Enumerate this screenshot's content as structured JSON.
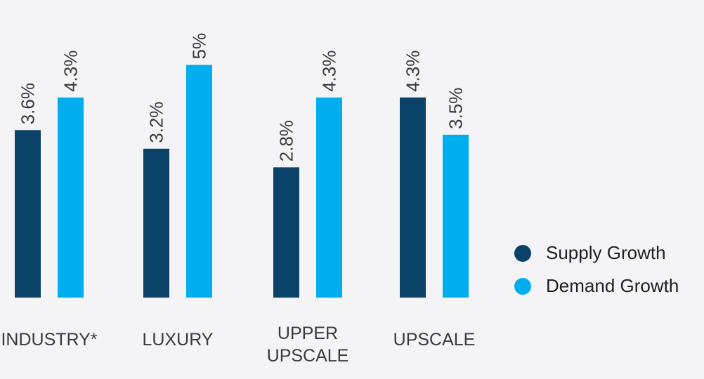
{
  "chart_data": {
    "type": "bar",
    "categories": [
      [
        "INDUSTRY*"
      ],
      [
        "LUXURY"
      ],
      [
        "UPPER",
        "UPSCALE"
      ],
      [
        "UPSCALE"
      ]
    ],
    "series": [
      {
        "name": "Supply Growth",
        "color": "#0b4268",
        "values": [
          3.6,
          3.2,
          2.8,
          4.3
        ],
        "labels": [
          "3.6%",
          "3.2%",
          "2.8%",
          "4.3%"
        ]
      },
      {
        "name": "Demand Growth",
        "color": "#00aeef",
        "values": [
          4.3,
          5.0,
          4.3,
          3.5
        ],
        "labels": [
          "4.3%",
          "5%",
          "4.3%",
          "3.5%"
        ]
      }
    ],
    "title": "",
    "xlabel": "",
    "ylabel": "",
    "ylim": [
      0,
      5.5
    ],
    "grid": false,
    "legend_position": "right"
  }
}
